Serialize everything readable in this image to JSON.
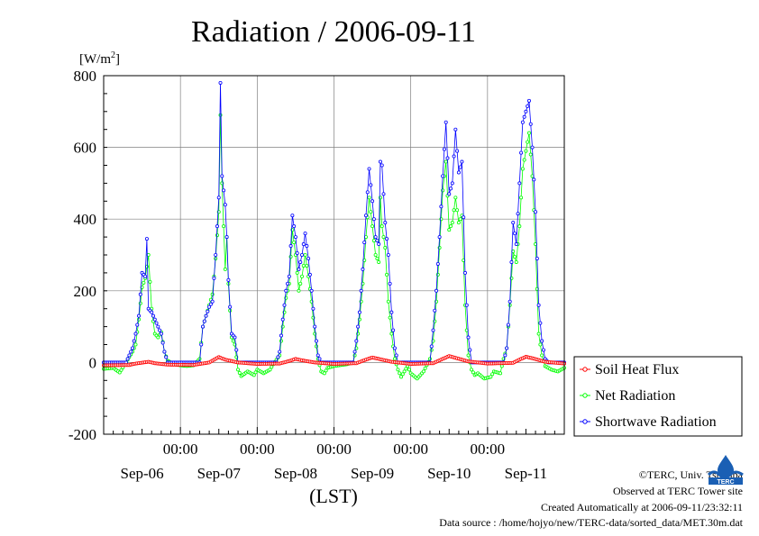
{
  "title": "Radiation / 2006-09-11",
  "unit_label": "[W/m",
  "unit_sup": "2",
  "unit_close": "]",
  "x_axis_label": "(LST)",
  "footer": {
    "credit": "©TERC, Univ. Tsukuba",
    "observed": "Observed at TERC Tower site",
    "created": "Created Automatically at 2006-09-11/23:32:11",
    "source": "Data source : /home/hojyo/new/TERC-data/sorted_data/MET.30m.dat"
  },
  "logo_text": "TERC",
  "colors": {
    "soil": "#ff0000",
    "net": "#00ff00",
    "shortwave": "#0000ff",
    "grid": "#808080"
  },
  "chart_data": {
    "type": "line",
    "title": "Radiation / 2006-09-11",
    "ylabel": "[W/m2]",
    "xlabel": "(LST)",
    "ylim": [
      -200,
      800
    ],
    "yticks": [
      -200,
      0,
      200,
      400,
      600,
      800
    ],
    "xlim_hours": [
      0,
      144
    ],
    "time_tick_labels": [
      "00:00",
      "00:00",
      "00:00",
      "00:00",
      "00:00"
    ],
    "date_labels": [
      "Sep-06",
      "Sep-07",
      "Sep-08",
      "Sep-09",
      "Sep-10",
      "Sep-11"
    ],
    "grid": true,
    "legend_position": "right",
    "series": [
      {
        "name": "Soil Heat Flux",
        "color": "#ff0000",
        "marker": "circle",
        "keypoints": [
          [
            0,
            -8
          ],
          [
            8,
            -7
          ],
          [
            10,
            -3
          ],
          [
            14,
            2
          ],
          [
            16,
            -2
          ],
          [
            20,
            -6
          ],
          [
            28,
            -7
          ],
          [
            33,
            0
          ],
          [
            36,
            15
          ],
          [
            38,
            8
          ],
          [
            42,
            0
          ],
          [
            48,
            -4
          ],
          [
            55,
            -3
          ],
          [
            58,
            4
          ],
          [
            60,
            10
          ],
          [
            62,
            6
          ],
          [
            66,
            0
          ],
          [
            72,
            -4
          ],
          [
            79,
            -2
          ],
          [
            82,
            8
          ],
          [
            84,
            14
          ],
          [
            86,
            10
          ],
          [
            90,
            2
          ],
          [
            96,
            -4
          ],
          [
            103,
            -2
          ],
          [
            106,
            10
          ],
          [
            108,
            18
          ],
          [
            110,
            13
          ],
          [
            114,
            3
          ],
          [
            120,
            -3
          ],
          [
            128,
            -1
          ],
          [
            130,
            8
          ],
          [
            132,
            16
          ],
          [
            134,
            12
          ],
          [
            138,
            2
          ],
          [
            144,
            -3
          ]
        ]
      },
      {
        "name": "Net Radiation",
        "color": "#00ff00",
        "marker": "circle",
        "keypoints": [
          [
            0,
            -18
          ],
          [
            3,
            -15
          ],
          [
            5,
            -28
          ],
          [
            7,
            0
          ],
          [
            9,
            30
          ],
          [
            10,
            50
          ],
          [
            11,
            120
          ],
          [
            12,
            210
          ],
          [
            13,
            235
          ],
          [
            14,
            300
          ],
          [
            15,
            150
          ],
          [
            16,
            80
          ],
          [
            17,
            70
          ],
          [
            18,
            85
          ],
          [
            19,
            30
          ],
          [
            20,
            5
          ],
          [
            22,
            -5
          ],
          [
            24,
            -8
          ],
          [
            26,
            -10
          ],
          [
            28,
            -8
          ],
          [
            30,
            10
          ],
          [
            31,
            100
          ],
          [
            32,
            130
          ],
          [
            33,
            160
          ],
          [
            34,
            190
          ],
          [
            35,
            290
          ],
          [
            36,
            420
          ],
          [
            36.5,
            690
          ],
          [
            37,
            500
          ],
          [
            38,
            260
          ],
          [
            38.5,
            350
          ],
          [
            39,
            220
          ],
          [
            40,
            70
          ],
          [
            41,
            50
          ],
          [
            42,
            -20
          ],
          [
            43,
            -38
          ],
          [
            45,
            -25
          ],
          [
            47,
            -35
          ],
          [
            48,
            -20
          ],
          [
            50,
            -30
          ],
          [
            52,
            -20
          ],
          [
            53,
            -5
          ],
          [
            55,
            20
          ],
          [
            56,
            100
          ],
          [
            57,
            180
          ],
          [
            58,
            220
          ],
          [
            59,
            370
          ],
          [
            60,
            300
          ],
          [
            61,
            200
          ],
          [
            62,
            240
          ],
          [
            63,
            300
          ],
          [
            64,
            240
          ],
          [
            65,
            170
          ],
          [
            66,
            80
          ],
          [
            67,
            10
          ],
          [
            68,
            -25
          ],
          [
            69,
            -30
          ],
          [
            70,
            -15
          ],
          [
            72,
            -10
          ],
          [
            76,
            -5
          ],
          [
            78,
            0
          ],
          [
            79,
            40
          ],
          [
            80,
            120
          ],
          [
            81,
            220
          ],
          [
            82,
            350
          ],
          [
            83,
            460
          ],
          [
            84,
            380
          ],
          [
            85,
            300
          ],
          [
            86,
            280
          ],
          [
            86.5,
            460
          ],
          [
            87,
            380
          ],
          [
            88,
            320
          ],
          [
            89,
            170
          ],
          [
            90,
            80
          ],
          [
            91,
            10
          ],
          [
            92,
            -20
          ],
          [
            93,
            -40
          ],
          [
            95,
            -10
          ],
          [
            96,
            -30
          ],
          [
            98,
            -45
          ],
          [
            100,
            -25
          ],
          [
            102,
            10
          ],
          [
            103,
            60
          ],
          [
            104,
            170
          ],
          [
            105,
            320
          ],
          [
            106,
            480
          ],
          [
            107,
            560
          ],
          [
            108,
            370
          ],
          [
            109,
            390
          ],
          [
            110,
            460
          ],
          [
            111,
            390
          ],
          [
            112,
            410
          ],
          [
            113,
            160
          ],
          [
            114,
            20
          ],
          [
            115,
            -20
          ],
          [
            116,
            -35
          ],
          [
            117,
            -30
          ],
          [
            119,
            -45
          ],
          [
            121,
            -40
          ],
          [
            122,
            -25
          ],
          [
            124,
            -30
          ],
          [
            125,
            10
          ],
          [
            126,
            40
          ],
          [
            127,
            160
          ],
          [
            128,
            310
          ],
          [
            129,
            280
          ],
          [
            130,
            380
          ],
          [
            131,
            540
          ],
          [
            132,
            590
          ],
          [
            133,
            640
          ],
          [
            134,
            520
          ],
          [
            135,
            330
          ],
          [
            136,
            80
          ],
          [
            137,
            20
          ],
          [
            138,
            -10
          ],
          [
            140,
            -20
          ],
          [
            142,
            -25
          ],
          [
            144,
            -15
          ]
        ]
      },
      {
        "name": "Shortwave Radiation",
        "color": "#0000ff",
        "marker": "circle",
        "keypoints": [
          [
            0,
            0
          ],
          [
            7,
            0
          ],
          [
            8,
            20
          ],
          [
            9,
            40
          ],
          [
            10,
            80
          ],
          [
            11,
            130
          ],
          [
            12,
            250
          ],
          [
            13,
            240
          ],
          [
            13.5,
            345
          ],
          [
            14,
            150
          ],
          [
            15,
            140
          ],
          [
            16,
            120
          ],
          [
            17,
            100
          ],
          [
            18,
            80
          ],
          [
            19,
            30
          ],
          [
            20,
            0
          ],
          [
            30,
            0
          ],
          [
            31,
            100
          ],
          [
            32,
            130
          ],
          [
            33,
            155
          ],
          [
            34,
            170
          ],
          [
            35,
            300
          ],
          [
            36,
            460
          ],
          [
            36.5,
            780
          ],
          [
            37,
            520
          ],
          [
            38,
            440
          ],
          [
            38.5,
            350
          ],
          [
            39,
            230
          ],
          [
            40,
            80
          ],
          [
            41,
            70
          ],
          [
            42,
            0
          ],
          [
            54,
            0
          ],
          [
            55,
            30
          ],
          [
            56,
            120
          ],
          [
            57,
            200
          ],
          [
            58,
            240
          ],
          [
            59,
            410
          ],
          [
            60,
            350
          ],
          [
            61,
            260
          ],
          [
            62,
            300
          ],
          [
            63,
            360
          ],
          [
            64,
            290
          ],
          [
            65,
            200
          ],
          [
            66,
            100
          ],
          [
            67,
            20
          ],
          [
            68,
            0
          ],
          [
            78,
            0
          ],
          [
            79,
            60
          ],
          [
            80,
            140
          ],
          [
            81,
            260
          ],
          [
            82,
            410
          ],
          [
            83,
            540
          ],
          [
            84,
            450
          ],
          [
            85,
            350
          ],
          [
            86,
            330
          ],
          [
            86.5,
            560
          ],
          [
            87,
            550
          ],
          [
            88,
            390
          ],
          [
            89,
            300
          ],
          [
            90,
            140
          ],
          [
            91,
            40
          ],
          [
            92,
            0
          ],
          [
            102,
            0
          ],
          [
            103,
            90
          ],
          [
            104,
            200
          ],
          [
            105,
            350
          ],
          [
            106,
            520
          ],
          [
            107,
            670
          ],
          [
            108,
            470
          ],
          [
            109,
            500
          ],
          [
            110,
            650
          ],
          [
            111,
            530
          ],
          [
            112,
            560
          ],
          [
            113,
            250
          ],
          [
            114,
            70
          ],
          [
            115,
            0
          ],
          [
            125,
            0
          ],
          [
            126,
            40
          ],
          [
            127,
            170
          ],
          [
            128,
            390
          ],
          [
            129,
            330
          ],
          [
            130,
            500
          ],
          [
            131,
            670
          ],
          [
            132,
            700
          ],
          [
            133,
            730
          ],
          [
            134,
            600
          ],
          [
            135,
            420
          ],
          [
            136,
            160
          ],
          [
            137,
            60
          ],
          [
            138,
            10
          ],
          [
            139,
            0
          ],
          [
            144,
            0
          ]
        ]
      }
    ]
  }
}
